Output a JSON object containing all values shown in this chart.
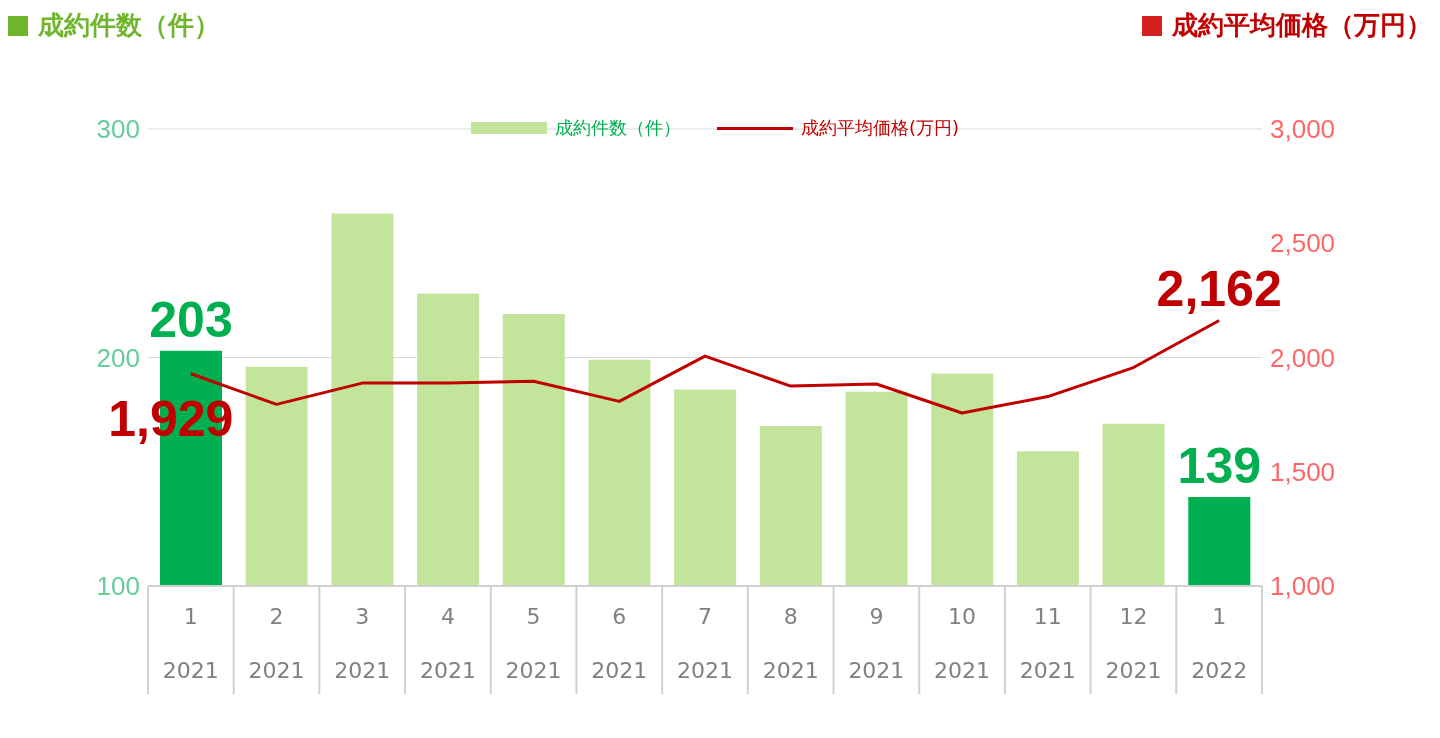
{
  "chart_data": {
    "type": "bar",
    "ylabel": "成約件数（件）",
    "y2label": "成約平均価格（万円）",
    "categories": [
      "1\n2021",
      "2\n2021",
      "3\n2021",
      "4\n2021",
      "5\n2021",
      "6\n2021",
      "7\n2021",
      "8\n2021",
      "9\n2021",
      "10\n2021",
      "11\n2021",
      "12\n2021",
      "1\n2022"
    ],
    "series": [
      {
        "name": "成約件数（件）",
        "color": "#c3e59b",
        "colors": [
          "#00b050",
          "#c3e59b",
          "#c3e59b",
          "#c3e59b",
          "#c3e59b",
          "#c3e59b",
          "#c3e59b",
          "#c3e59b",
          "#c3e59b",
          "#c3e59b",
          "#c3e59b",
          "#c3e59b",
          "#00b050"
        ],
        "values": [
          203,
          196,
          263,
          228,
          219,
          199,
          186,
          170,
          185,
          193,
          159,
          171,
          139
        ],
        "value_labels": [
          "203",
          null,
          null,
          null,
          null,
          null,
          null,
          null,
          null,
          null,
          null,
          null,
          "139"
        ]
      },
      {
        "name": "成約平均価格(万円)",
        "type": "line",
        "axis": "y2",
        "color": "#c00000",
        "values": [
          1929,
          1795,
          1888,
          1888,
          1896,
          1808,
          2006,
          1875,
          1884,
          1757,
          1829,
          1956,
          2162
        ],
        "value_labels": [
          "1,929",
          null,
          null,
          null,
          null,
          null,
          null,
          null,
          null,
          null,
          null,
          null,
          "2,162"
        ]
      }
    ],
    "ylim": [
      100,
      300
    ],
    "yticks": [
      100,
      200,
      300
    ],
    "y2lim": [
      1000,
      3000
    ],
    "y2ticks": [
      {
        "value": 1000,
        "label": "1,000"
      },
      {
        "value": 1500,
        "label": "1,500"
      },
      {
        "value": 2000,
        "label": "2,000"
      },
      {
        "value": 2500,
        "label": "2,500"
      },
      {
        "value": 3000,
        "label": "3,000"
      }
    ],
    "grid": "y",
    "legend": "top"
  }
}
